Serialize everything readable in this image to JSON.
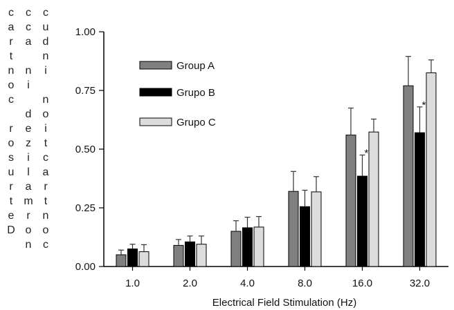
{
  "chart_data": {
    "type": "bar",
    "xlabel": "Electrical Field Stimulation (Hz)",
    "ylabel_columns": [
      "cartnoc rosurteD",
      "cca ni dezilamron",
      "cudni noitcartnoc"
    ],
    "categories": [
      "1.0",
      "2.0",
      "4.0",
      "8.0",
      "16.0",
      "32.0"
    ],
    "ylim": [
      0,
      1
    ],
    "yticks": [
      "0.00",
      "0.25",
      "0.50",
      "0.75",
      "1.00"
    ],
    "grid": false,
    "legend_position": "top-left",
    "series": [
      {
        "name": "Group A",
        "color": "#808080",
        "values": [
          0.05,
          0.09,
          0.15,
          0.32,
          0.56,
          0.77
        ],
        "errors": [
          0.02,
          0.025,
          0.045,
          0.085,
          0.115,
          0.125
        ]
      },
      {
        "name": "Grupo B",
        "color": "#000000",
        "values": [
          0.075,
          0.105,
          0.165,
          0.255,
          0.385,
          0.57
        ],
        "errors": [
          0.02,
          0.025,
          0.045,
          0.07,
          0.09,
          0.11
        ]
      },
      {
        "name": "Grupo C",
        "color": "#dcdcdc",
        "values": [
          0.063,
          0.095,
          0.168,
          0.318,
          0.573,
          0.825
        ],
        "errors": [
          0.03,
          0.035,
          0.045,
          0.065,
          0.055,
          0.055
        ]
      }
    ],
    "annotations": [
      {
        "text": "*",
        "category": "16.0"
      },
      {
        "text": "*",
        "category": "32.0"
      }
    ]
  }
}
